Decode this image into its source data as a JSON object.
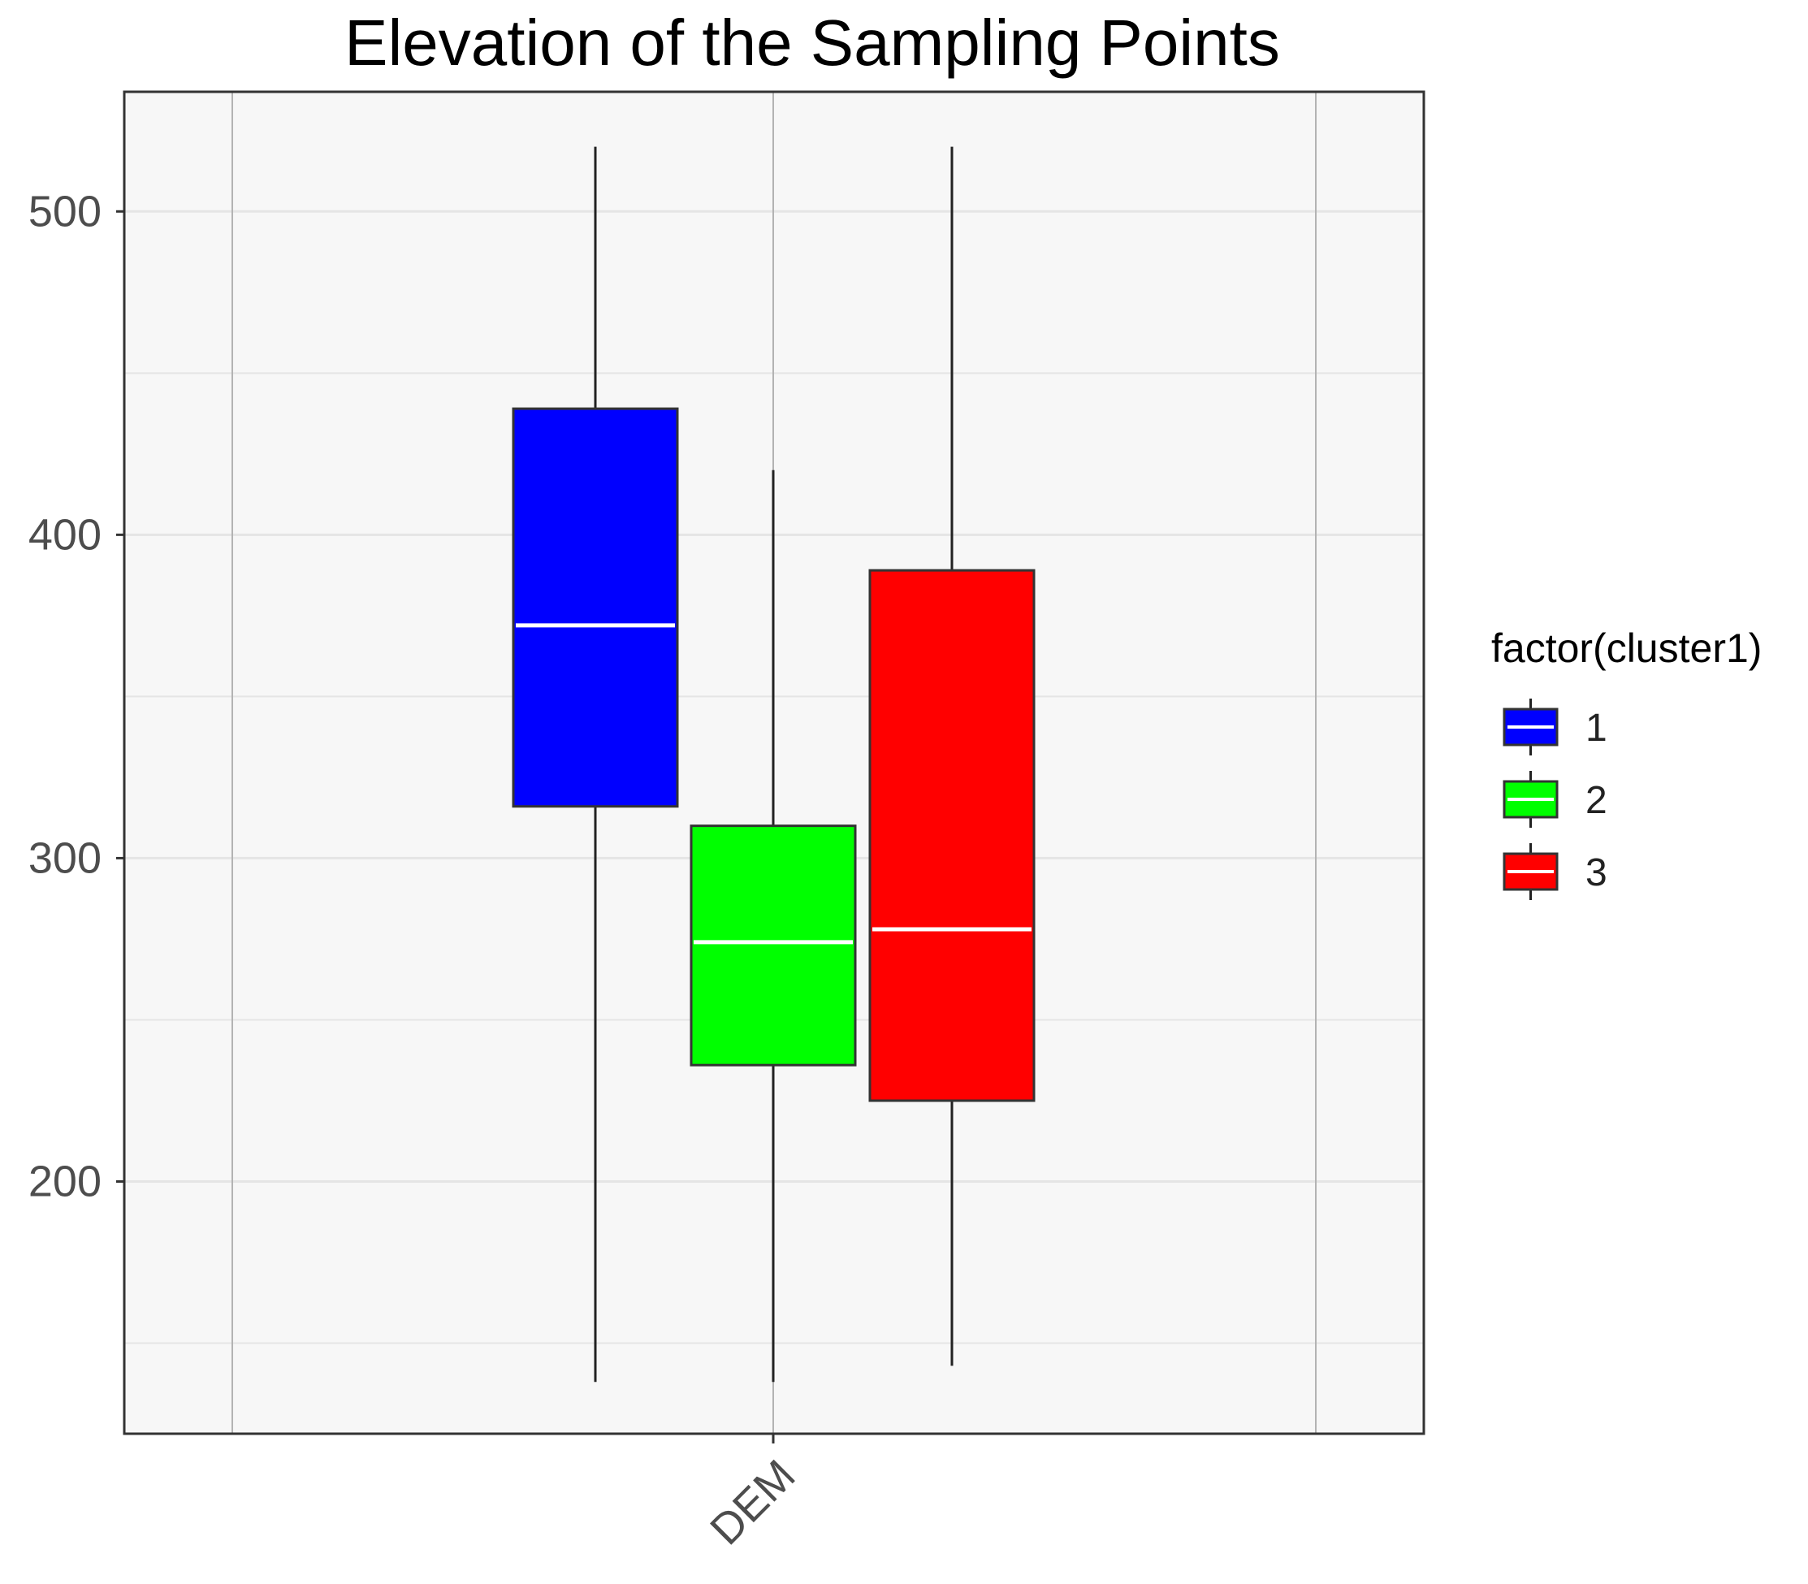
{
  "colors": {
    "panel_background": "#f7f7f7",
    "panel_border": "#333333",
    "grid_major": "#b3b3b3",
    "grid_minor": "#e5e5e5",
    "whisker": "#222222",
    "box_outline": "#333333",
    "median": "#ffffff",
    "axis_text": "#4d4d4d",
    "title_text": "#111111"
  },
  "chart_data": {
    "type": "box",
    "title": "Elevation of the Sampling Points",
    "xlabel": "",
    "ylabel": "",
    "categories": [
      "DEM"
    ],
    "ylim": [
      122,
      537
    ],
    "y_ticks": [
      200,
      300,
      400,
      500
    ],
    "y_minor_ticks": [
      150,
      250,
      350,
      450
    ],
    "grid": true,
    "legend": {
      "title": "factor(cluster1)",
      "position": "right"
    },
    "series": [
      {
        "name": "1",
        "color": "#0000ff",
        "whisker_low": 138,
        "q1": 316,
        "median": 372,
        "q3": 439,
        "whisker_high": 520
      },
      {
        "name": "2",
        "color": "#00ff00",
        "whisker_low": 138,
        "q1": 236,
        "median": 274,
        "q3": 310,
        "whisker_high": 420
      },
      {
        "name": "3",
        "color": "#ff0000",
        "whisker_low": 143,
        "q1": 225,
        "median": 278,
        "q3": 389,
        "whisker_high": 520
      }
    ]
  }
}
